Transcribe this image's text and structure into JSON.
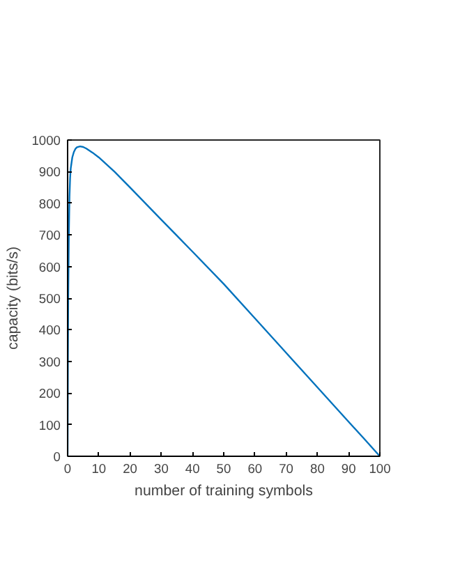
{
  "chart_data": {
    "type": "line",
    "xlabel": "number of training symbols",
    "ylabel": "capacity (bits/s)",
    "x": [
      0,
      0.1,
      0.2,
      0.4,
      0.6,
      0.8,
      1,
      1.5,
      2,
      2.5,
      3,
      4,
      5,
      6,
      8,
      10,
      15,
      20,
      30,
      40,
      50,
      60,
      70,
      80,
      90,
      95,
      100
    ],
    "series": [
      {
        "color": "#0072bd",
        "values": [
          0,
          300,
          500,
          700,
          820,
          880,
          910,
          945,
          962,
          972,
          977,
          980,
          978,
          973,
          960,
          945,
          900,
          850,
          748,
          647,
          545,
          436,
          327,
          218,
          109,
          55,
          0
        ]
      }
    ],
    "xlim": [
      0,
      100
    ],
    "ylim": [
      0,
      1000
    ],
    "xticks": [
      0,
      10,
      20,
      30,
      40,
      50,
      60,
      70,
      80,
      90,
      100
    ],
    "yticks": [
      0,
      100,
      200,
      300,
      400,
      500,
      600,
      700,
      800,
      900,
      1000
    ],
    "grid": false
  }
}
